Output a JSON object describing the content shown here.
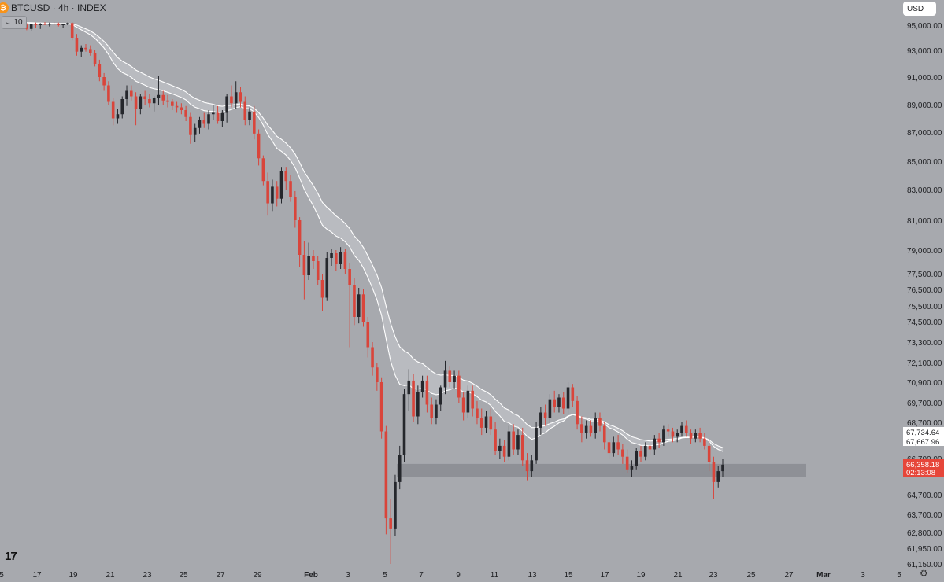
{
  "header": {
    "badge": "₿",
    "title": "BTCUSD · 4h · INDEX",
    "interval_value": "10",
    "currency": "USD",
    "logo": "17"
  },
  "colors": {
    "background": "#a7a9ae",
    "up": "#25272c",
    "down": "#d9453b",
    "ma_band": "#ffffff",
    "zone": "#8a8c92",
    "price_label": "#e6463a"
  },
  "icons": {
    "settings": "gear-icon",
    "interval_dropdown": "chevron-down-icon"
  },
  "chart_data": {
    "type": "candlestick",
    "title": "BTCUSD · 4h · INDEX",
    "xlabel": "",
    "ylabel": "",
    "ylim": [
      61150,
      96500
    ],
    "grid": false,
    "x_ticks": [
      "5",
      "17",
      "19",
      "21",
      "23",
      "25",
      "27",
      "29",
      "Feb",
      "3",
      "5",
      "7",
      "9",
      "11",
      "13",
      "15",
      "17",
      "19",
      "21",
      "23",
      "25",
      "27",
      "Mar",
      "3",
      "5"
    ],
    "y_ticks": [
      95000,
      93000,
      91000,
      89000,
      87000,
      85000,
      83000,
      81000,
      79000,
      77500,
      76500,
      75500,
      74500,
      73300,
      72100,
      70900,
      69700,
      68700,
      66700,
      64700,
      63700,
      62800,
      61950,
      61150
    ],
    "y_tick_labels": [
      "95,000.00",
      "93,000.00",
      "91,000.00",
      "89,000.00",
      "87,000.00",
      "85,000.00",
      "83,000.00",
      "81,000.00",
      "79,000.00",
      "77,500.00",
      "76,500.00",
      "75,500.00",
      "74,500.00",
      "73,300.00",
      "72,100.00",
      "70,900.00",
      "69,700.00",
      "68,700.00",
      "66,700.00",
      "64,700.00",
      "63,700.00",
      "62,800.00",
      "61,950.00",
      "61,150.00"
    ],
    "price_labels": [
      {
        "value": 67734.64,
        "text": "67,734.64",
        "kind": "ma"
      },
      {
        "value": 67667.96,
        "text": "67,667.96",
        "kind": "ma"
      },
      {
        "value": 66358.18,
        "text": "66,358.18",
        "countdown": "02:13:08",
        "kind": "last"
      }
    ],
    "support_zone": {
      "from": 65700,
      "to": 66400,
      "start": "Feb 5",
      "end": "Feb 28"
    },
    "series": [
      {
        "name": "BTCUSD",
        "values": [
          [
            95300,
            95900,
            95100,
            95700
          ],
          [
            95700,
            96200,
            95400,
            95500
          ],
          [
            95500,
            95800,
            95000,
            95200
          ],
          [
            95200,
            95600,
            94800,
            95400
          ],
          [
            95400,
            95700,
            94900,
            95100
          ],
          [
            95100,
            95400,
            94600,
            94700
          ],
          [
            94700,
            95300,
            94500,
            95200
          ],
          [
            95200,
            95500,
            94800,
            95000
          ],
          [
            95000,
            95400,
            94700,
            95300
          ],
          [
            95300,
            95600,
            95000,
            95100
          ],
          [
            95100,
            95500,
            94900,
            95300
          ],
          [
            95300,
            95600,
            95000,
            95200
          ],
          [
            95200,
            95500,
            94900,
            95000
          ],
          [
            95000,
            95300,
            94800,
            95200
          ],
          [
            95200,
            95500,
            95000,
            95400
          ],
          [
            95400,
            95600,
            93800,
            94000
          ],
          [
            94000,
            94300,
            92600,
            92900
          ],
          [
            92900,
            93400,
            92500,
            93200
          ],
          [
            93200,
            93500,
            92900,
            93100
          ],
          [
            93100,
            93400,
            92600,
            92800
          ],
          [
            92800,
            93000,
            91800,
            92000
          ],
          [
            92000,
            92300,
            90700,
            91000
          ],
          [
            91000,
            91300,
            90000,
            90400
          ],
          [
            90400,
            90700,
            89000,
            89200
          ],
          [
            89200,
            89500,
            87500,
            88000
          ],
          [
            88000,
            88700,
            87600,
            88300
          ],
          [
            88300,
            89600,
            88000,
            89400
          ],
          [
            89400,
            90400,
            88900,
            90000
          ],
          [
            90000,
            90400,
            89300,
            89600
          ],
          [
            89600,
            89900,
            87500,
            88700
          ],
          [
            88700,
            89800,
            88300,
            89600
          ],
          [
            89600,
            90000,
            89000,
            89400
          ],
          [
            89400,
            89800,
            88800,
            89100
          ],
          [
            89100,
            89600,
            88500,
            89500
          ],
          [
            89500,
            91100,
            89000,
            89700
          ],
          [
            89700,
            90000,
            89000,
            89300
          ],
          [
            89300,
            89700,
            88800,
            89200
          ],
          [
            89200,
            89400,
            88600,
            88900
          ],
          [
            88900,
            89200,
            88400,
            88800
          ],
          [
            88800,
            89100,
            88300,
            88600
          ],
          [
            88600,
            88900,
            87800,
            88100
          ],
          [
            88100,
            88400,
            86200,
            86800
          ],
          [
            86800,
            87600,
            86300,
            87300
          ],
          [
            87300,
            88100,
            86900,
            87900
          ],
          [
            87900,
            88400,
            87300,
            87600
          ],
          [
            87600,
            88600,
            87200,
            88300
          ],
          [
            88300,
            89000,
            87900,
            88400
          ],
          [
            88400,
            88900,
            87600,
            87800
          ],
          [
            87800,
            88600,
            87400,
            88400
          ],
          [
            88400,
            89800,
            87700,
            89600
          ],
          [
            89600,
            90400,
            88800,
            89100
          ],
          [
            89100,
            90700,
            88700,
            89900
          ],
          [
            89900,
            90300,
            88800,
            89200
          ],
          [
            89200,
            89600,
            87500,
            87900
          ],
          [
            87900,
            88800,
            87500,
            88500
          ],
          [
            88500,
            88900,
            86500,
            86900
          ],
          [
            86900,
            87200,
            84700,
            85200
          ],
          [
            85200,
            85400,
            83300,
            83600
          ],
          [
            83600,
            84200,
            81300,
            82100
          ],
          [
            82100,
            83700,
            81600,
            83200
          ],
          [
            83200,
            83600,
            81900,
            82400
          ],
          [
            82400,
            84600,
            82100,
            84300
          ],
          [
            84300,
            84600,
            83000,
            83600
          ],
          [
            83600,
            84000,
            82200,
            82500
          ],
          [
            82500,
            82900,
            80500,
            81000
          ],
          [
            81000,
            81200,
            77900,
            78700
          ],
          [
            78700,
            79600,
            75900,
            77400
          ],
          [
            77400,
            79500,
            77100,
            78600
          ],
          [
            78600,
            79000,
            77800,
            78300
          ],
          [
            78300,
            78600,
            76800,
            77100
          ],
          [
            77100,
            77500,
            75200,
            76000
          ],
          [
            76000,
            78900,
            75800,
            78500
          ],
          [
            78500,
            79100,
            78000,
            78800
          ],
          [
            78800,
            79000,
            77700,
            78100
          ],
          [
            78100,
            79200,
            77800,
            78900
          ],
          [
            78900,
            79100,
            77500,
            77800
          ],
          [
            77800,
            78200,
            73000,
            76800
          ],
          [
            76800,
            77200,
            74300,
            74800
          ],
          [
            74800,
            76600,
            74400,
            76200
          ],
          [
            76200,
            76500,
            74200,
            74500
          ],
          [
            74500,
            74800,
            72400,
            73000
          ],
          [
            73000,
            73300,
            71300,
            71800
          ],
          [
            71800,
            72100,
            70400,
            70900
          ],
          [
            70900,
            71200,
            67800,
            68200
          ],
          [
            68200,
            68500,
            62700,
            63500
          ],
          [
            63500,
            64500,
            61150,
            63000
          ],
          [
            63000,
            65800,
            62600,
            65400
          ],
          [
            65400,
            67400,
            65000,
            66900
          ],
          [
            66900,
            70500,
            66500,
            70200
          ],
          [
            70200,
            71700,
            69300,
            71000
          ],
          [
            71000,
            71400,
            68700,
            69000
          ],
          [
            69000,
            70700,
            68600,
            70300
          ],
          [
            70300,
            71300,
            70000,
            71000
          ],
          [
            71000,
            71300,
            69200,
            69600
          ],
          [
            69600,
            70000,
            68600,
            68900
          ],
          [
            68900,
            69900,
            68600,
            69600
          ],
          [
            69600,
            70700,
            69300,
            70600
          ],
          [
            70600,
            72200,
            70200,
            71600
          ],
          [
            71600,
            71900,
            70600,
            70900
          ],
          [
            70900,
            71600,
            70500,
            71300
          ],
          [
            71300,
            71600,
            69700,
            70000
          ],
          [
            70000,
            70300,
            68800,
            69200
          ],
          [
            69200,
            70700,
            68900,
            70400
          ],
          [
            70400,
            70700,
            69000,
            69400
          ],
          [
            69400,
            69800,
            68600,
            68900
          ],
          [
            68900,
            69400,
            68000,
            68400
          ],
          [
            68400,
            69300,
            68100,
            69000
          ],
          [
            69000,
            69400,
            68000,
            68300
          ],
          [
            68300,
            68700,
            66900,
            67100
          ],
          [
            67100,
            67800,
            66700,
            67400
          ],
          [
            67400,
            67700,
            66500,
            66800
          ],
          [
            66800,
            68500,
            66600,
            68200
          ],
          [
            68200,
            68600,
            66900,
            67200
          ],
          [
            67200,
            68300,
            66900,
            68000
          ],
          [
            68000,
            68400,
            66300,
            66600
          ],
          [
            66600,
            67000,
            65500,
            66000
          ],
          [
            66000,
            66900,
            65700,
            66600
          ],
          [
            66600,
            68700,
            66400,
            68400
          ],
          [
            68400,
            69500,
            68000,
            69200
          ],
          [
            69200,
            69600,
            68500,
            68900
          ],
          [
            68900,
            70200,
            68600,
            69900
          ],
          [
            69900,
            70400,
            69200,
            69500
          ],
          [
            69500,
            70200,
            69200,
            70000
          ],
          [
            70000,
            70300,
            69100,
            69400
          ],
          [
            69400,
            70900,
            69100,
            70600
          ],
          [
            70600,
            70800,
            69500,
            69800
          ],
          [
            69800,
            70100,
            68300,
            68600
          ],
          [
            68600,
            69000,
            67600,
            68100
          ],
          [
            68100,
            68800,
            67800,
            68500
          ],
          [
            68500,
            68800,
            67900,
            68100
          ],
          [
            68100,
            69200,
            67800,
            68900
          ],
          [
            68900,
            69200,
            68200,
            68500
          ],
          [
            68500,
            68700,
            67200,
            67600
          ],
          [
            67600,
            67800,
            66700,
            67000
          ],
          [
            67000,
            67900,
            66800,
            67600
          ],
          [
            67600,
            68000,
            66900,
            67200
          ],
          [
            67200,
            67500,
            66400,
            66800
          ],
          [
            66800,
            67200,
            65900,
            66100
          ],
          [
            66100,
            66600,
            65700,
            66300
          ],
          [
            66300,
            67300,
            66100,
            67100
          ],
          [
            67100,
            67400,
            66500,
            66800
          ],
          [
            66800,
            67600,
            66600,
            67400
          ],
          [
            67400,
            67800,
            66900,
            67200
          ],
          [
            67200,
            68000,
            66900,
            67800
          ],
          [
            67800,
            68100,
            67300,
            67600
          ],
          [
            67600,
            68500,
            67400,
            68300
          ],
          [
            68300,
            68600,
            67900,
            68200
          ],
          [
            68200,
            68400,
            67600,
            67900
          ],
          [
            67900,
            68300,
            67600,
            68100
          ],
          [
            68100,
            68700,
            67900,
            68500
          ],
          [
            68500,
            68800,
            67900,
            68100
          ],
          [
            68100,
            68300,
            67500,
            67800
          ],
          [
            67800,
            68300,
            67600,
            68100
          ],
          [
            68100,
            68400,
            67600,
            67800
          ],
          [
            67800,
            68100,
            67200,
            67400
          ],
          [
            67400,
            67700,
            66000,
            66500
          ],
          [
            66500,
            66800,
            64500,
            65400
          ],
          [
            65400,
            66300,
            65100,
            66000
          ],
          [
            66000,
            66700,
            65700,
            66358.18
          ]
        ]
      }
    ]
  }
}
